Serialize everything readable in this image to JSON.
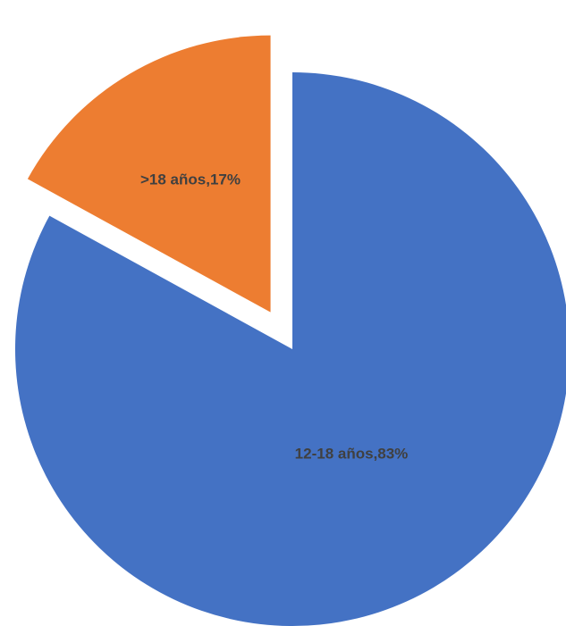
{
  "chart_data": {
    "type": "pie",
    "title": "",
    "categories": [
      "12-18 años",
      ">18 años"
    ],
    "values": [
      83,
      17
    ],
    "unit": "%",
    "labels": [
      "12-18 años,83%",
      ">18 años,17%"
    ],
    "colors": [
      "#4472C4",
      "#ED7D31"
    ],
    "exploded": [
      false,
      true
    ],
    "legend": "none"
  }
}
